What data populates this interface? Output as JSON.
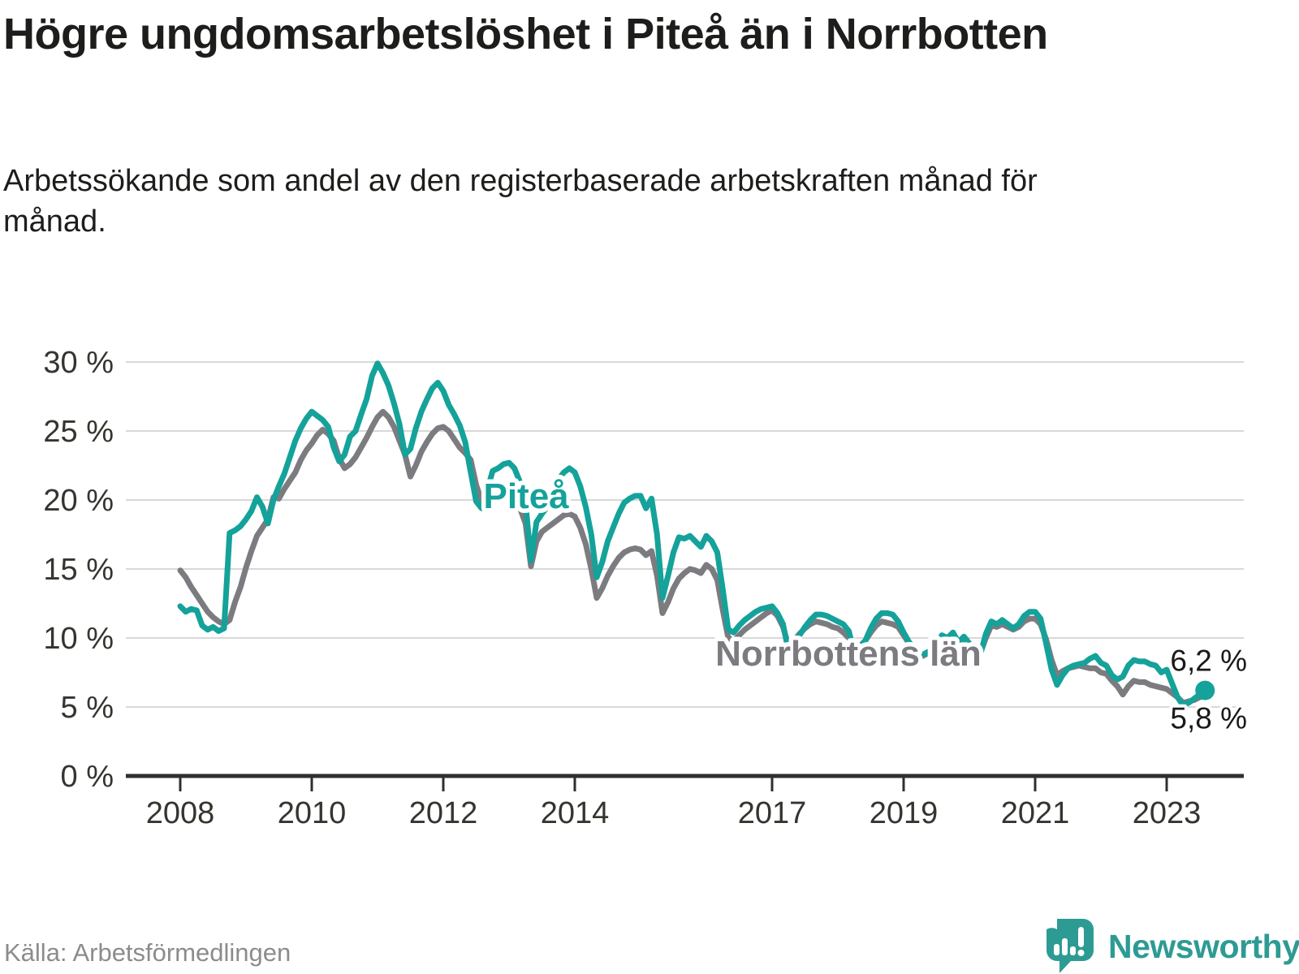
{
  "header": {
    "title": "Högre ungdomsarbetslöshet i Piteå än i Norrbotten",
    "subtitle": "Arbetssökande som andel av den registerbaserade arbetskraften månad för månad."
  },
  "footer": {
    "source": "Källa: Arbetsförmedlingen",
    "brand": "Newsworthy"
  },
  "colors": {
    "accent": "#14a29a",
    "comparison": "#7b7b80",
    "grid": "#d8d8d8",
    "axis": "#2f2f2e",
    "text": "#1d1d1b",
    "muted": "#8c8c8c",
    "brand": "#2d9b94"
  },
  "chart_data": {
    "type": "line",
    "title": "Högre ungdomsarbetslöshet i Piteå än i Norrbotten",
    "xlabel": "",
    "ylabel": "Arbetssökande som andel av den registerbaserade arbetskraften",
    "grid": true,
    "ylim": [
      0,
      31
    ],
    "x_axis": {
      "start_year": 2008,
      "frequency": "monthly",
      "ticks": [
        {
          "value": 2008,
          "label": "2008"
        },
        {
          "value": 2010,
          "label": "2010"
        },
        {
          "value": 2012,
          "label": "2012"
        },
        {
          "value": 2014,
          "label": "2014"
        },
        {
          "value": 2017,
          "label": "2017"
        },
        {
          "value": 2019,
          "label": "2019"
        },
        {
          "value": 2021,
          "label": "2021"
        },
        {
          "value": 2023,
          "label": "2023"
        }
      ]
    },
    "y_axis": {
      "unit": "%",
      "ticks": [
        {
          "value": 0,
          "label": "0 %"
        },
        {
          "value": 5,
          "label": "5 %"
        },
        {
          "value": 10,
          "label": "10 %"
        },
        {
          "value": 15,
          "label": "15 %"
        },
        {
          "value": 20,
          "label": "20 %"
        },
        {
          "value": 25,
          "label": "25 %"
        },
        {
          "value": 30,
          "label": "30 %"
        }
      ]
    },
    "series": [
      {
        "name": "Piteå",
        "color": "#14a29a",
        "start": "2008-01",
        "frequency": "monthly",
        "values": [
          12.3,
          11.9,
          12.1,
          12.0,
          10.9,
          10.6,
          10.8,
          10.5,
          10.7,
          17.6,
          17.8,
          18.1,
          18.6,
          19.2,
          20.2,
          19.5,
          18.3,
          20.0,
          21.0,
          21.9,
          23.1,
          24.3,
          25.2,
          25.9,
          26.4,
          26.1,
          25.8,
          25.3,
          23.8,
          22.8,
          23.3,
          24.6,
          25.0,
          26.2,
          27.3,
          29.0,
          29.9,
          29.2,
          28.3,
          27.0,
          25.5,
          23.3,
          23.7,
          25.2,
          26.4,
          27.3,
          28.1,
          28.5,
          27.9,
          26.9,
          26.2,
          25.4,
          24.2,
          22.0,
          19.9,
          19.4,
          20.7,
          22.1,
          22.3,
          22.6,
          22.7,
          22.3,
          21.3,
          19.8,
          15.6,
          18.4,
          19.0,
          19.5,
          20.5,
          21.5,
          22.0,
          22.3,
          22.0,
          21.0,
          19.5,
          17.5,
          14.4,
          15.5,
          17.0,
          18.0,
          19.0,
          19.8,
          20.1,
          20.3,
          20.3,
          19.4,
          20.1,
          17.5,
          12.9,
          14.5,
          16.2,
          17.3,
          17.2,
          17.4,
          17.0,
          16.6,
          17.4,
          17.0,
          16.2,
          13.5,
          10.6,
          10.4,
          10.9,
          11.3,
          11.6,
          11.9,
          12.1,
          12.2,
          12.3,
          11.8,
          11.0,
          9.0,
          9.6,
          10.2,
          10.8,
          11.3,
          11.7,
          11.7,
          11.6,
          11.4,
          11.2,
          11.0,
          10.5,
          8.9,
          9.3,
          9.8,
          10.7,
          11.4,
          11.8,
          11.8,
          11.7,
          11.2,
          10.4,
          9.7,
          9.2,
          8.7,
          8.9,
          9.1,
          9.6,
          10.2,
          10.0,
          10.4,
          9.7,
          10.1,
          9.6,
          9.2,
          8.8,
          10.3,
          11.2,
          11.0,
          11.3,
          11.0,
          10.7,
          11.0,
          11.6,
          11.9,
          11.9,
          11.4,
          9.6,
          7.7,
          6.6,
          7.3,
          7.8,
          8.0,
          8.1,
          8.2,
          8.5,
          8.7,
          8.2,
          8.0,
          7.3,
          7.0,
          7.2,
          8.0,
          8.4,
          8.3,
          8.3,
          8.1,
          8.0,
          7.5,
          7.7,
          6.7,
          5.7,
          5.1,
          5.3,
          5.6,
          5.9,
          6.2
        ]
      },
      {
        "name": "Norrbottens län",
        "color": "#7b7b80",
        "start": "2008-01",
        "frequency": "monthly",
        "values": [
          14.9,
          14.4,
          13.7,
          13.1,
          12.5,
          11.9,
          11.5,
          11.2,
          11.0,
          11.3,
          12.6,
          13.7,
          15.1,
          16.3,
          17.4,
          18.0,
          18.6,
          20.2,
          20.1,
          20.8,
          21.4,
          22.0,
          22.9,
          23.6,
          24.1,
          24.7,
          25.1,
          24.8,
          24.3,
          23.0,
          22.3,
          22.6,
          23.1,
          23.8,
          24.5,
          25.3,
          26.0,
          26.4,
          26.0,
          25.3,
          24.3,
          23.3,
          21.7,
          22.5,
          23.5,
          24.2,
          24.8,
          25.2,
          25.3,
          25.0,
          24.4,
          23.8,
          23.4,
          22.9,
          21.1,
          19.9,
          19.4,
          20.1,
          20.5,
          20.7,
          20.6,
          20.2,
          19.4,
          18.3,
          15.2,
          17.0,
          17.7,
          18.0,
          18.3,
          18.6,
          18.9,
          19.0,
          18.8,
          18.0,
          16.8,
          15.0,
          12.9,
          13.6,
          14.5,
          15.2,
          15.8,
          16.2,
          16.4,
          16.5,
          16.4,
          16.0,
          16.3,
          14.5,
          11.8,
          12.6,
          13.6,
          14.3,
          14.7,
          15.0,
          14.9,
          14.7,
          15.3,
          15.0,
          14.2,
          12.0,
          10.0,
          9.8,
          10.2,
          10.6,
          10.9,
          11.2,
          11.5,
          11.8,
          12.0,
          11.6,
          10.8,
          9.4,
          9.8,
          10.3,
          10.7,
          11.0,
          11.2,
          11.1,
          11.0,
          10.8,
          10.7,
          10.4,
          10.0,
          9.0,
          9.4,
          9.8,
          10.4,
          10.9,
          11.2,
          11.1,
          11.0,
          10.8,
          10.2,
          9.6,
          9.1,
          8.6,
          8.8,
          9.0,
          9.4,
          9.9,
          9.8,
          10.1,
          9.6,
          9.8,
          9.5,
          9.1,
          8.9,
          10.0,
          10.9,
          10.8,
          11.0,
          10.8,
          10.6,
          10.8,
          11.2,
          11.4,
          11.4,
          11.0,
          9.9,
          8.4,
          7.3,
          7.6,
          7.8,
          7.9,
          8.0,
          7.9,
          7.8,
          7.8,
          7.5,
          7.4,
          6.9,
          6.5,
          5.9,
          6.5,
          6.9,
          6.8,
          6.8,
          6.6,
          6.5,
          6.4,
          6.3,
          6.0,
          5.7,
          5.3,
          5.4,
          5.5,
          5.7,
          5.8
        ]
      }
    ],
    "series_labels": [
      {
        "text": "Piteå",
        "series": 0,
        "anchor_year": 2013.26,
        "anchor_pct": 19.4
      },
      {
        "text": "Norrbottens län",
        "series": 1,
        "anchor_year": 2018.16,
        "anchor_pct": 8.0
      }
    ],
    "end_labels": [
      {
        "text": "6,2 %",
        "series": 0
      },
      {
        "text": "5,8 %",
        "series": 1
      }
    ],
    "end_dot_series": 0,
    "legend_position": "inline"
  }
}
